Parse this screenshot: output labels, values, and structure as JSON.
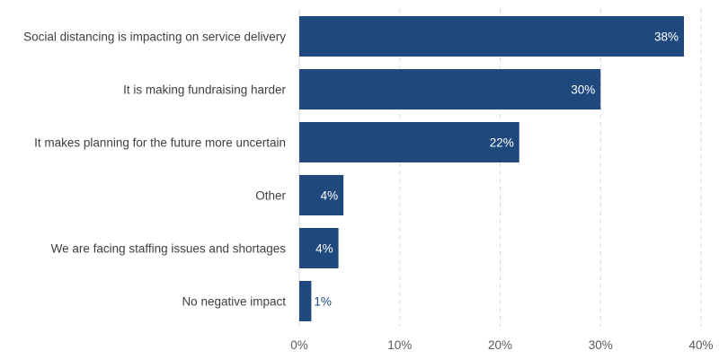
{
  "chart_data": {
    "type": "bar",
    "orientation": "horizontal",
    "categories": [
      "Social distancing is impacting on service delivery",
      "It is making fundraising harder",
      "It makes planning for the future more uncertain",
      "Other",
      "We are facing staffing issues and shortages",
      "No negative impact"
    ],
    "values": [
      38.3,
      30.0,
      21.9,
      4.4,
      3.9,
      1.2
    ],
    "data_labels": [
      "38%",
      "30%",
      "22%",
      "4%",
      "4%",
      "1%"
    ],
    "xlim": [
      0,
      40
    ],
    "x_ticks": [
      0,
      10,
      20,
      30,
      40
    ],
    "x_tick_labels": [
      "0%",
      "10%",
      "20%",
      "30%",
      "40%"
    ],
    "title": "",
    "xlabel": "",
    "ylabel": "",
    "grid": "vertical dashed",
    "colors": {
      "bar": "#1f497d",
      "label_inside": "#ffffff",
      "label_outside": "#1f497d",
      "grid": "#d9d9d9"
    }
  }
}
